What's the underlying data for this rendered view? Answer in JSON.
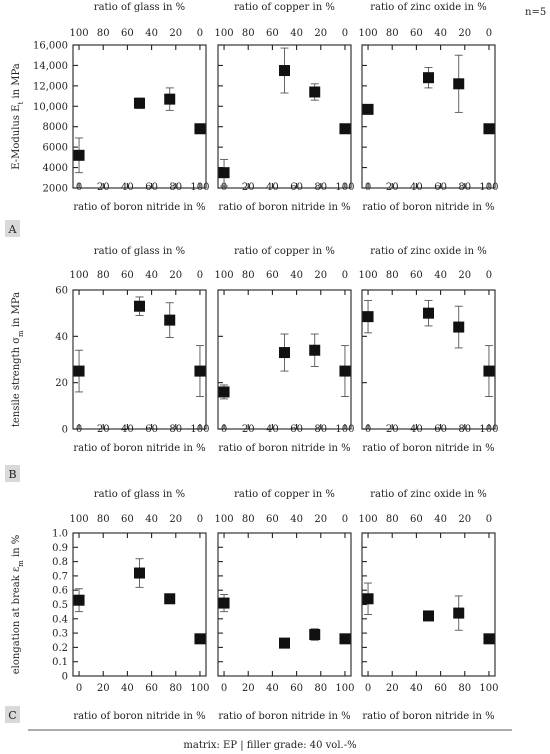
{
  "annotations": {
    "sample_size": "n=5",
    "footer": "matrix: EP | filler grade: 40 vol.-%"
  },
  "rows": [
    {
      "letter": "A",
      "ylabel_html": "E-Modulus E<tspan baseline-shift='sub' font-size='7'>t</tspan> in MPa"
    },
    {
      "letter": "B",
      "ylabel_html": "tensile strength σ<tspan baseline-shift='sub' font-size='7'>m</tspan> in MPa"
    },
    {
      "letter": "C",
      "ylabel_html": "elongation at break ε<tspan baseline-shift='sub' font-size='7'>m</tspan> in %"
    }
  ],
  "chart_data": [
    {
      "id": "A1",
      "type": "scatter",
      "xlabel": "ratio of boron nitride in %",
      "x2label": "ratio of glass in %",
      "x_ticks": [
        0,
        20,
        40,
        60,
        80,
        100
      ],
      "x2_ticks": [
        100,
        80,
        60,
        40,
        20,
        0
      ],
      "xlim": [
        -5,
        105
      ],
      "ylim": [
        2000,
        16000
      ],
      "y_ticks": [
        2000,
        4000,
        6000,
        8000,
        10000,
        12000,
        14000,
        16000
      ],
      "y_tick_labels": [
        "2000",
        "4000",
        "6000",
        "8000",
        "10,000",
        "12,000",
        "14,000",
        "16,000"
      ],
      "points": [
        {
          "x": 0,
          "y": 5200,
          "err": 1700
        },
        {
          "x": 50,
          "y": 10300,
          "err": 500
        },
        {
          "x": 75,
          "y": 10700,
          "err": 1100
        },
        {
          "x": 100,
          "y": 7800,
          "err": 0
        }
      ]
    },
    {
      "id": "A2",
      "type": "scatter",
      "xlabel": "ratio of boron nitride in %",
      "x2label": "ratio of copper in %",
      "x_ticks": [
        0,
        20,
        40,
        60,
        80,
        100
      ],
      "x2_ticks": [
        100,
        80,
        60,
        40,
        20,
        0
      ],
      "xlim": [
        -5,
        105
      ],
      "ylim": [
        2000,
        16000
      ],
      "y_ticks": [
        2000,
        4000,
        6000,
        8000,
        10000,
        12000,
        14000,
        16000
      ],
      "points": [
        {
          "x": 0,
          "y": 3500,
          "err": 1300
        },
        {
          "x": 50,
          "y": 13500,
          "err": 2200
        },
        {
          "x": 75,
          "y": 11400,
          "err": 800
        },
        {
          "x": 100,
          "y": 7800,
          "err": 0
        }
      ]
    },
    {
      "id": "A3",
      "type": "scatter",
      "xlabel": "ratio of boron nitride in %",
      "x2label": "ratio of zinc oxide in %",
      "x_ticks": [
        0,
        20,
        40,
        60,
        80,
        100
      ],
      "x2_ticks": [
        100,
        80,
        60,
        40,
        20,
        0
      ],
      "xlim": [
        -5,
        105
      ],
      "ylim": [
        2000,
        16000
      ],
      "y_ticks": [
        2000,
        4000,
        6000,
        8000,
        10000,
        12000,
        14000,
        16000
      ],
      "points": [
        {
          "x": 0,
          "y": 9700,
          "err": 0
        },
        {
          "x": 50,
          "y": 12800,
          "err": 1000
        },
        {
          "x": 75,
          "y": 12200,
          "err": 2800
        },
        {
          "x": 100,
          "y": 7800,
          "err": 0
        }
      ]
    },
    {
      "id": "B1",
      "type": "scatter",
      "xlabel": "ratio of boron nitride in %",
      "x2label": "ratio of glass in %",
      "x_ticks": [
        0,
        20,
        40,
        60,
        80,
        100
      ],
      "x2_ticks": [
        100,
        80,
        60,
        40,
        20,
        0
      ],
      "xlim": [
        -5,
        105
      ],
      "ylim": [
        0,
        60
      ],
      "y_ticks": [
        0,
        20,
        40,
        60
      ],
      "y_tick_labels": [
        "0",
        "20",
        "40",
        "60"
      ],
      "points": [
        {
          "x": 0,
          "y": 25,
          "err": 9
        },
        {
          "x": 50,
          "y": 53,
          "err": 4
        },
        {
          "x": 75,
          "y": 47,
          "err": 7.5
        },
        {
          "x": 100,
          "y": 25,
          "err": 11
        }
      ]
    },
    {
      "id": "B2",
      "type": "scatter",
      "xlabel": "ratio of boron nitride in %",
      "x2label": "ratio of copper in %",
      "x_ticks": [
        0,
        20,
        40,
        60,
        80,
        100
      ],
      "x2_ticks": [
        100,
        80,
        60,
        40,
        20,
        0
      ],
      "xlim": [
        -5,
        105
      ],
      "ylim": [
        0,
        60
      ],
      "y_ticks": [
        0,
        20,
        40,
        60
      ],
      "points": [
        {
          "x": 0,
          "y": 16,
          "err": 3
        },
        {
          "x": 50,
          "y": 33,
          "err": 8
        },
        {
          "x": 75,
          "y": 34,
          "err": 7
        },
        {
          "x": 100,
          "y": 25,
          "err": 11
        }
      ]
    },
    {
      "id": "B3",
      "type": "scatter",
      "xlabel": "ratio of boron nitride in %",
      "x2label": "ratio of zinc oxide in %",
      "x_ticks": [
        0,
        20,
        40,
        60,
        80,
        100
      ],
      "x2_ticks": [
        100,
        80,
        60,
        40,
        20,
        0
      ],
      "xlim": [
        -5,
        105
      ],
      "ylim": [
        0,
        60
      ],
      "y_ticks": [
        0,
        20,
        40,
        60
      ],
      "points": [
        {
          "x": 0,
          "y": 48.5,
          "err": 7
        },
        {
          "x": 50,
          "y": 50,
          "err": 5.5
        },
        {
          "x": 75,
          "y": 44,
          "err": 9
        },
        {
          "x": 100,
          "y": 25,
          "err": 11
        }
      ]
    },
    {
      "id": "C1",
      "type": "scatter",
      "xlabel": "ratio of boron nitride in %",
      "x2label": "ratio of glass in %",
      "x_ticks": [
        0,
        20,
        40,
        60,
        80,
        100
      ],
      "x2_ticks": [
        100,
        80,
        60,
        40,
        20,
        0
      ],
      "xlim": [
        -5,
        105
      ],
      "ylim": [
        0,
        1.0
      ],
      "y_ticks": [
        0,
        0.1,
        0.2,
        0.3,
        0.4,
        0.5,
        0.6,
        0.7,
        0.8,
        0.9,
        1.0
      ],
      "y_tick_labels": [
        "0",
        "0.1",
        "0.2",
        "0.3",
        "0.4",
        "0.5",
        "0.6",
        "0.7",
        "0.8",
        "0.9",
        "1.0"
      ],
      "points": [
        {
          "x": 0,
          "y": 0.53,
          "err": 0.08
        },
        {
          "x": 50,
          "y": 0.72,
          "err": 0.1
        },
        {
          "x": 75,
          "y": 0.54,
          "err": 0
        },
        {
          "x": 100,
          "y": 0.26,
          "err": 0
        }
      ]
    },
    {
      "id": "C2",
      "type": "scatter",
      "xlabel": "ratio of boron nitride in %",
      "x2label": "ratio of copper in %",
      "x_ticks": [
        0,
        20,
        40,
        60,
        80,
        100
      ],
      "x2_ticks": [
        100,
        80,
        60,
        40,
        20,
        0
      ],
      "xlim": [
        -5,
        105
      ],
      "ylim": [
        0,
        1.0
      ],
      "y_ticks": [
        0,
        0.1,
        0.2,
        0.3,
        0.4,
        0.5,
        0.6,
        0.7,
        0.8,
        0.9,
        1.0
      ],
      "points": [
        {
          "x": 0,
          "y": 0.51,
          "err": 0.06
        },
        {
          "x": 50,
          "y": 0.23,
          "err": 0
        },
        {
          "x": 75,
          "y": 0.29,
          "err": 0.04
        },
        {
          "x": 100,
          "y": 0.26,
          "err": 0
        }
      ]
    },
    {
      "id": "C3",
      "type": "scatter",
      "xlabel": "ratio of boron nitride in %",
      "x2label": "ratio of zinc oxide in %",
      "x_ticks": [
        0,
        20,
        40,
        60,
        80,
        100
      ],
      "x2_ticks": [
        100,
        80,
        60,
        40,
        20,
        0
      ],
      "xlim": [
        -5,
        105
      ],
      "ylim": [
        0,
        1.0
      ],
      "y_ticks": [
        0,
        0.1,
        0.2,
        0.3,
        0.4,
        0.5,
        0.6,
        0.7,
        0.8,
        0.9,
        1.0
      ],
      "points": [
        {
          "x": 0,
          "y": 0.54,
          "err": 0.11
        },
        {
          "x": 50,
          "y": 0.42,
          "err": 0
        },
        {
          "x": 75,
          "y": 0.44,
          "err": 0.12
        },
        {
          "x": 100,
          "y": 0.26,
          "err": 0
        }
      ]
    }
  ]
}
